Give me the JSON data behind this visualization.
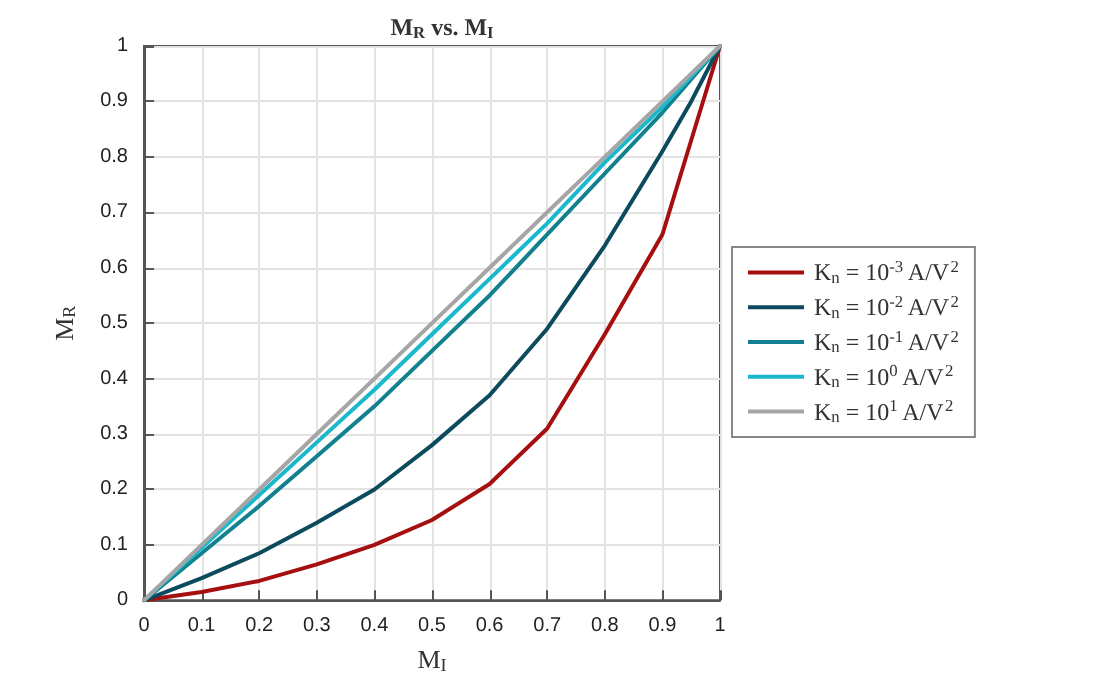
{
  "chart_data": {
    "type": "line",
    "title": "M$_{R}$ vs. M$_{I}$",
    "xlabel": "M$_{I}$",
    "ylabel": "M$_{R}$",
    "x": [
      0,
      0.1,
      0.2,
      0.3,
      0.4,
      0.5,
      0.6,
      0.7,
      0.8,
      0.9,
      0.95,
      1
    ],
    "series": [
      {
        "name": "K$_{n}$ = 10$^{-3}$ A/V$^{2}$",
        "color": "#a50f0f",
        "values": [
          0,
          0.015,
          0.035,
          0.065,
          0.1,
          0.145,
          0.21,
          0.31,
          0.48,
          0.66,
          0.83,
          1
        ]
      },
      {
        "name": "K$_{n}$ = 10$^{-2}$ A/V$^{2}$",
        "color": "#0c4a5e",
        "values": [
          0,
          0.04,
          0.085,
          0.14,
          0.2,
          0.28,
          0.37,
          0.49,
          0.64,
          0.81,
          0.9,
          1
        ]
      },
      {
        "name": "K$_{n}$ = 10$^{-1}$ A/V$^{2}$",
        "color": "#12808e",
        "values": [
          0,
          0.085,
          0.17,
          0.26,
          0.35,
          0.45,
          0.55,
          0.66,
          0.77,
          0.88,
          0.94,
          1
        ]
      },
      {
        "name": "K$_{n}$ = 10$^{0}$ A/V$^{2}$",
        "color": "#1ab8cc",
        "values": [
          0,
          0.095,
          0.19,
          0.285,
          0.38,
          0.48,
          0.58,
          0.68,
          0.79,
          0.89,
          0.945,
          1
        ]
      },
      {
        "name": "K$_{n}$ = 10$^{1}$ A/V$^{2}$",
        "color": "#a6a6a6",
        "values": [
          0,
          0.1,
          0.2,
          0.3,
          0.4,
          0.5,
          0.6,
          0.7,
          0.8,
          0.9,
          0.95,
          1
        ]
      }
    ],
    "xlim": [
      0,
      1
    ],
    "ylim": [
      0,
      1
    ],
    "xticks": [
      0,
      0.1,
      0.2,
      0.3,
      0.4,
      0.5,
      0.6,
      0.7,
      0.8,
      0.9,
      1
    ],
    "yticks": [
      0,
      0.1,
      0.2,
      0.3,
      0.4,
      0.5,
      0.6,
      0.7,
      0.8,
      0.9,
      1
    ],
    "grid": true,
    "legend": "right",
    "marker": "none",
    "line_style": "solid"
  }
}
